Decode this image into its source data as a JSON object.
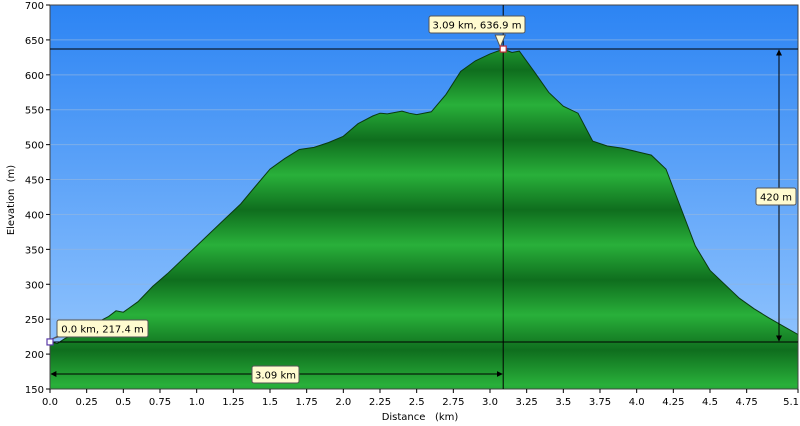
{
  "chart_data": {
    "type": "area",
    "xlabel": "Distance   (km)",
    "ylabel": "Elevation  (m)",
    "xlim": [
      0,
      5.1
    ],
    "ylim": [
      150,
      700
    ],
    "xticks": [
      "0.0",
      "0.25",
      "0.5",
      "0.75",
      "1.0",
      "1.25",
      "1.5",
      "1.75",
      "2.0",
      "2.25",
      "2.5",
      "2.75",
      "3.0",
      "3.25",
      "3.5",
      "3.75",
      "4.0",
      "4.25",
      "4.5",
      "4.75",
      "5.1"
    ],
    "yticks": [
      "150",
      "200",
      "250",
      "300",
      "350",
      "400",
      "450",
      "500",
      "550",
      "600",
      "650",
      "700"
    ],
    "xtick_values": [
      0,
      0.25,
      0.5,
      0.75,
      1.0,
      1.25,
      1.5,
      1.75,
      2.0,
      2.25,
      2.5,
      2.75,
      3.0,
      3.25,
      3.5,
      3.75,
      4.0,
      4.25,
      4.5,
      4.75,
      5.1
    ],
    "ytick_values": [
      150,
      200,
      250,
      300,
      350,
      400,
      450,
      500,
      550,
      600,
      650,
      700
    ],
    "series": [
      {
        "x": [
          0,
          0.05,
          0.1,
          0.2,
          0.3,
          0.4,
          0.45,
          0.5,
          0.6,
          0.7,
          0.8,
          0.9,
          1.0,
          1.1,
          1.2,
          1.3,
          1.4,
          1.5,
          1.6,
          1.7,
          1.8,
          1.9,
          2.0,
          2.1,
          2.2,
          2.25,
          2.3,
          2.4,
          2.45,
          2.5,
          2.6,
          2.7,
          2.8,
          2.9,
          3.0,
          3.09,
          3.15,
          3.2,
          3.3,
          3.4,
          3.5,
          3.6,
          3.7,
          3.8,
          3.9,
          4.0,
          4.1,
          4.2,
          4.3,
          4.4,
          4.5,
          4.6,
          4.7,
          4.8,
          4.9,
          5.0,
          5.1
        ],
        "y": [
          217.4,
          215,
          222,
          232,
          243,
          254,
          262,
          260,
          275,
          297,
          315,
          335,
          355,
          375,
          395,
          415,
          440,
          465,
          480,
          493,
          496,
          503,
          512,
          530,
          541,
          545,
          544,
          548,
          545,
          543,
          547,
          572,
          605,
          620,
          630,
          636.9,
          632,
          634,
          605,
          575,
          555,
          545,
          505,
          498,
          495,
          490,
          485,
          465,
          410,
          355,
          320,
          300,
          280,
          265,
          252,
          240,
          228
        ]
      }
    ],
    "markers": [
      {
        "label": "0.0 km, 217.4 m",
        "x": 0.0,
        "y": 217.4
      },
      {
        "label": "3.09 km, 636.9 m",
        "x": 3.09,
        "y": 636.9
      }
    ],
    "measurements": [
      {
        "label": "3.09 km",
        "from": 0.0,
        "to": 3.09,
        "axis": "x"
      },
      {
        "label": "420 m",
        "from": 217.4,
        "to": 636.9,
        "axis": "y"
      }
    ],
    "grid": true,
    "colors": {
      "sky_top": "#2a82f2",
      "sky_bottom": "#8ec3fb",
      "terrain": "#1e9a2f",
      "terrain_dark": "#0f6a1c",
      "callout": "#fffbd0"
    }
  }
}
